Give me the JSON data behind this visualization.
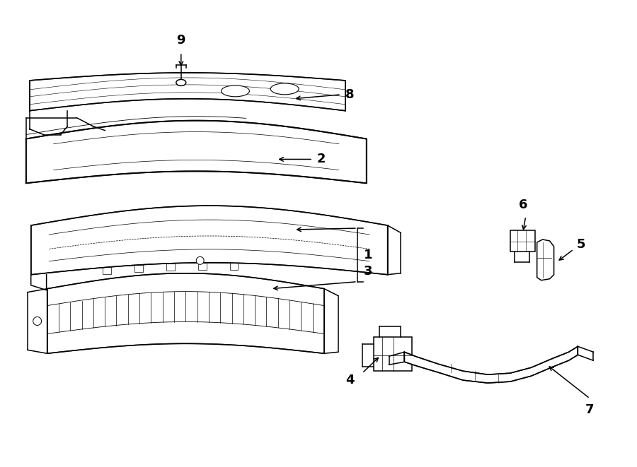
{
  "background_color": "#ffffff",
  "line_color": "#000000",
  "fig_width": 9.0,
  "fig_height": 6.61,
  "dpi": 100
}
